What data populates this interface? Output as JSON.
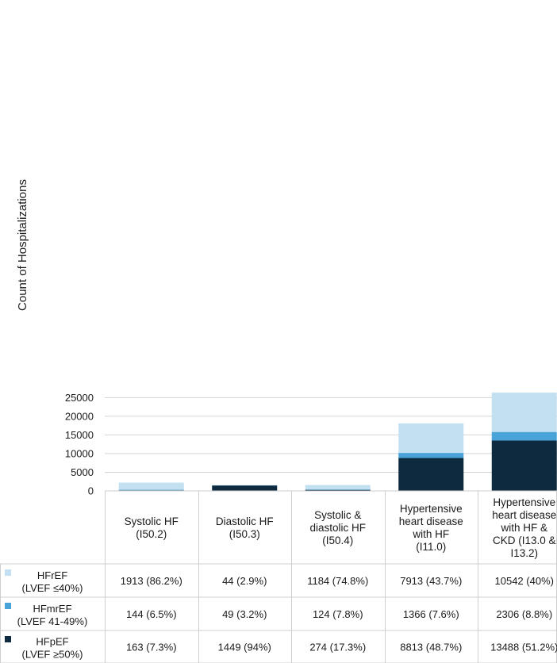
{
  "chart_data": {
    "type": "bar",
    "stacked": true,
    "ylabel": "Count of Hospitalizations",
    "xlabel": "",
    "ylim": [
      0,
      26500
    ],
    "yticks": [
      0,
      5000,
      10000,
      15000,
      20000,
      25000
    ],
    "categories": [
      [
        "Systolic HF",
        "(I50.2)"
      ],
      [
        "Diastolic HF",
        "(I50.3)"
      ],
      [
        "Systolic &",
        "diastolic HF",
        "(I50.4)"
      ],
      [
        "Hypertensive",
        "heart disease",
        "with HF",
        "(I11.0)"
      ],
      [
        "Hypertensive",
        "heart disease",
        "with HF &",
        "CKD (I13.0 &",
        "I13.2)"
      ]
    ],
    "series": [
      {
        "name": "HFpEF",
        "sub": "(LVEF ≥50%)",
        "color": "#0e2a3f",
        "values": [
          163,
          1449,
          274,
          8813,
          13488
        ],
        "labels": [
          "163 (7.3%)",
          "1449 (94%)",
          "274 (17.3%)",
          "8813 (48.7%)",
          "13488 (51.2%)"
        ]
      },
      {
        "name": "HFmrEF",
        "sub": "(LVEF 41-49%)",
        "color": "#4aa3d8",
        "values": [
          144,
          49,
          124,
          1366,
          2306
        ],
        "labels": [
          "144 (6.5%)",
          "49 (3.2%)",
          "124 (7.8%)",
          "1366 (7.6%)",
          "2306 (8.8%)"
        ]
      },
      {
        "name": "HFrEF",
        "sub": "(LVEF ≤40%)",
        "color": "#c3e0f1",
        "values": [
          1913,
          44,
          1184,
          7913,
          10542
        ],
        "labels": [
          "1913 (86.2%)",
          "44 (2.9%)",
          "1184 (74.8%)",
          "7913 (43.7%)",
          "10542 (40%)"
        ]
      }
    ],
    "table_row_order": [
      "HFrEF",
      "HFmrEF",
      "HFpEF"
    ]
  }
}
